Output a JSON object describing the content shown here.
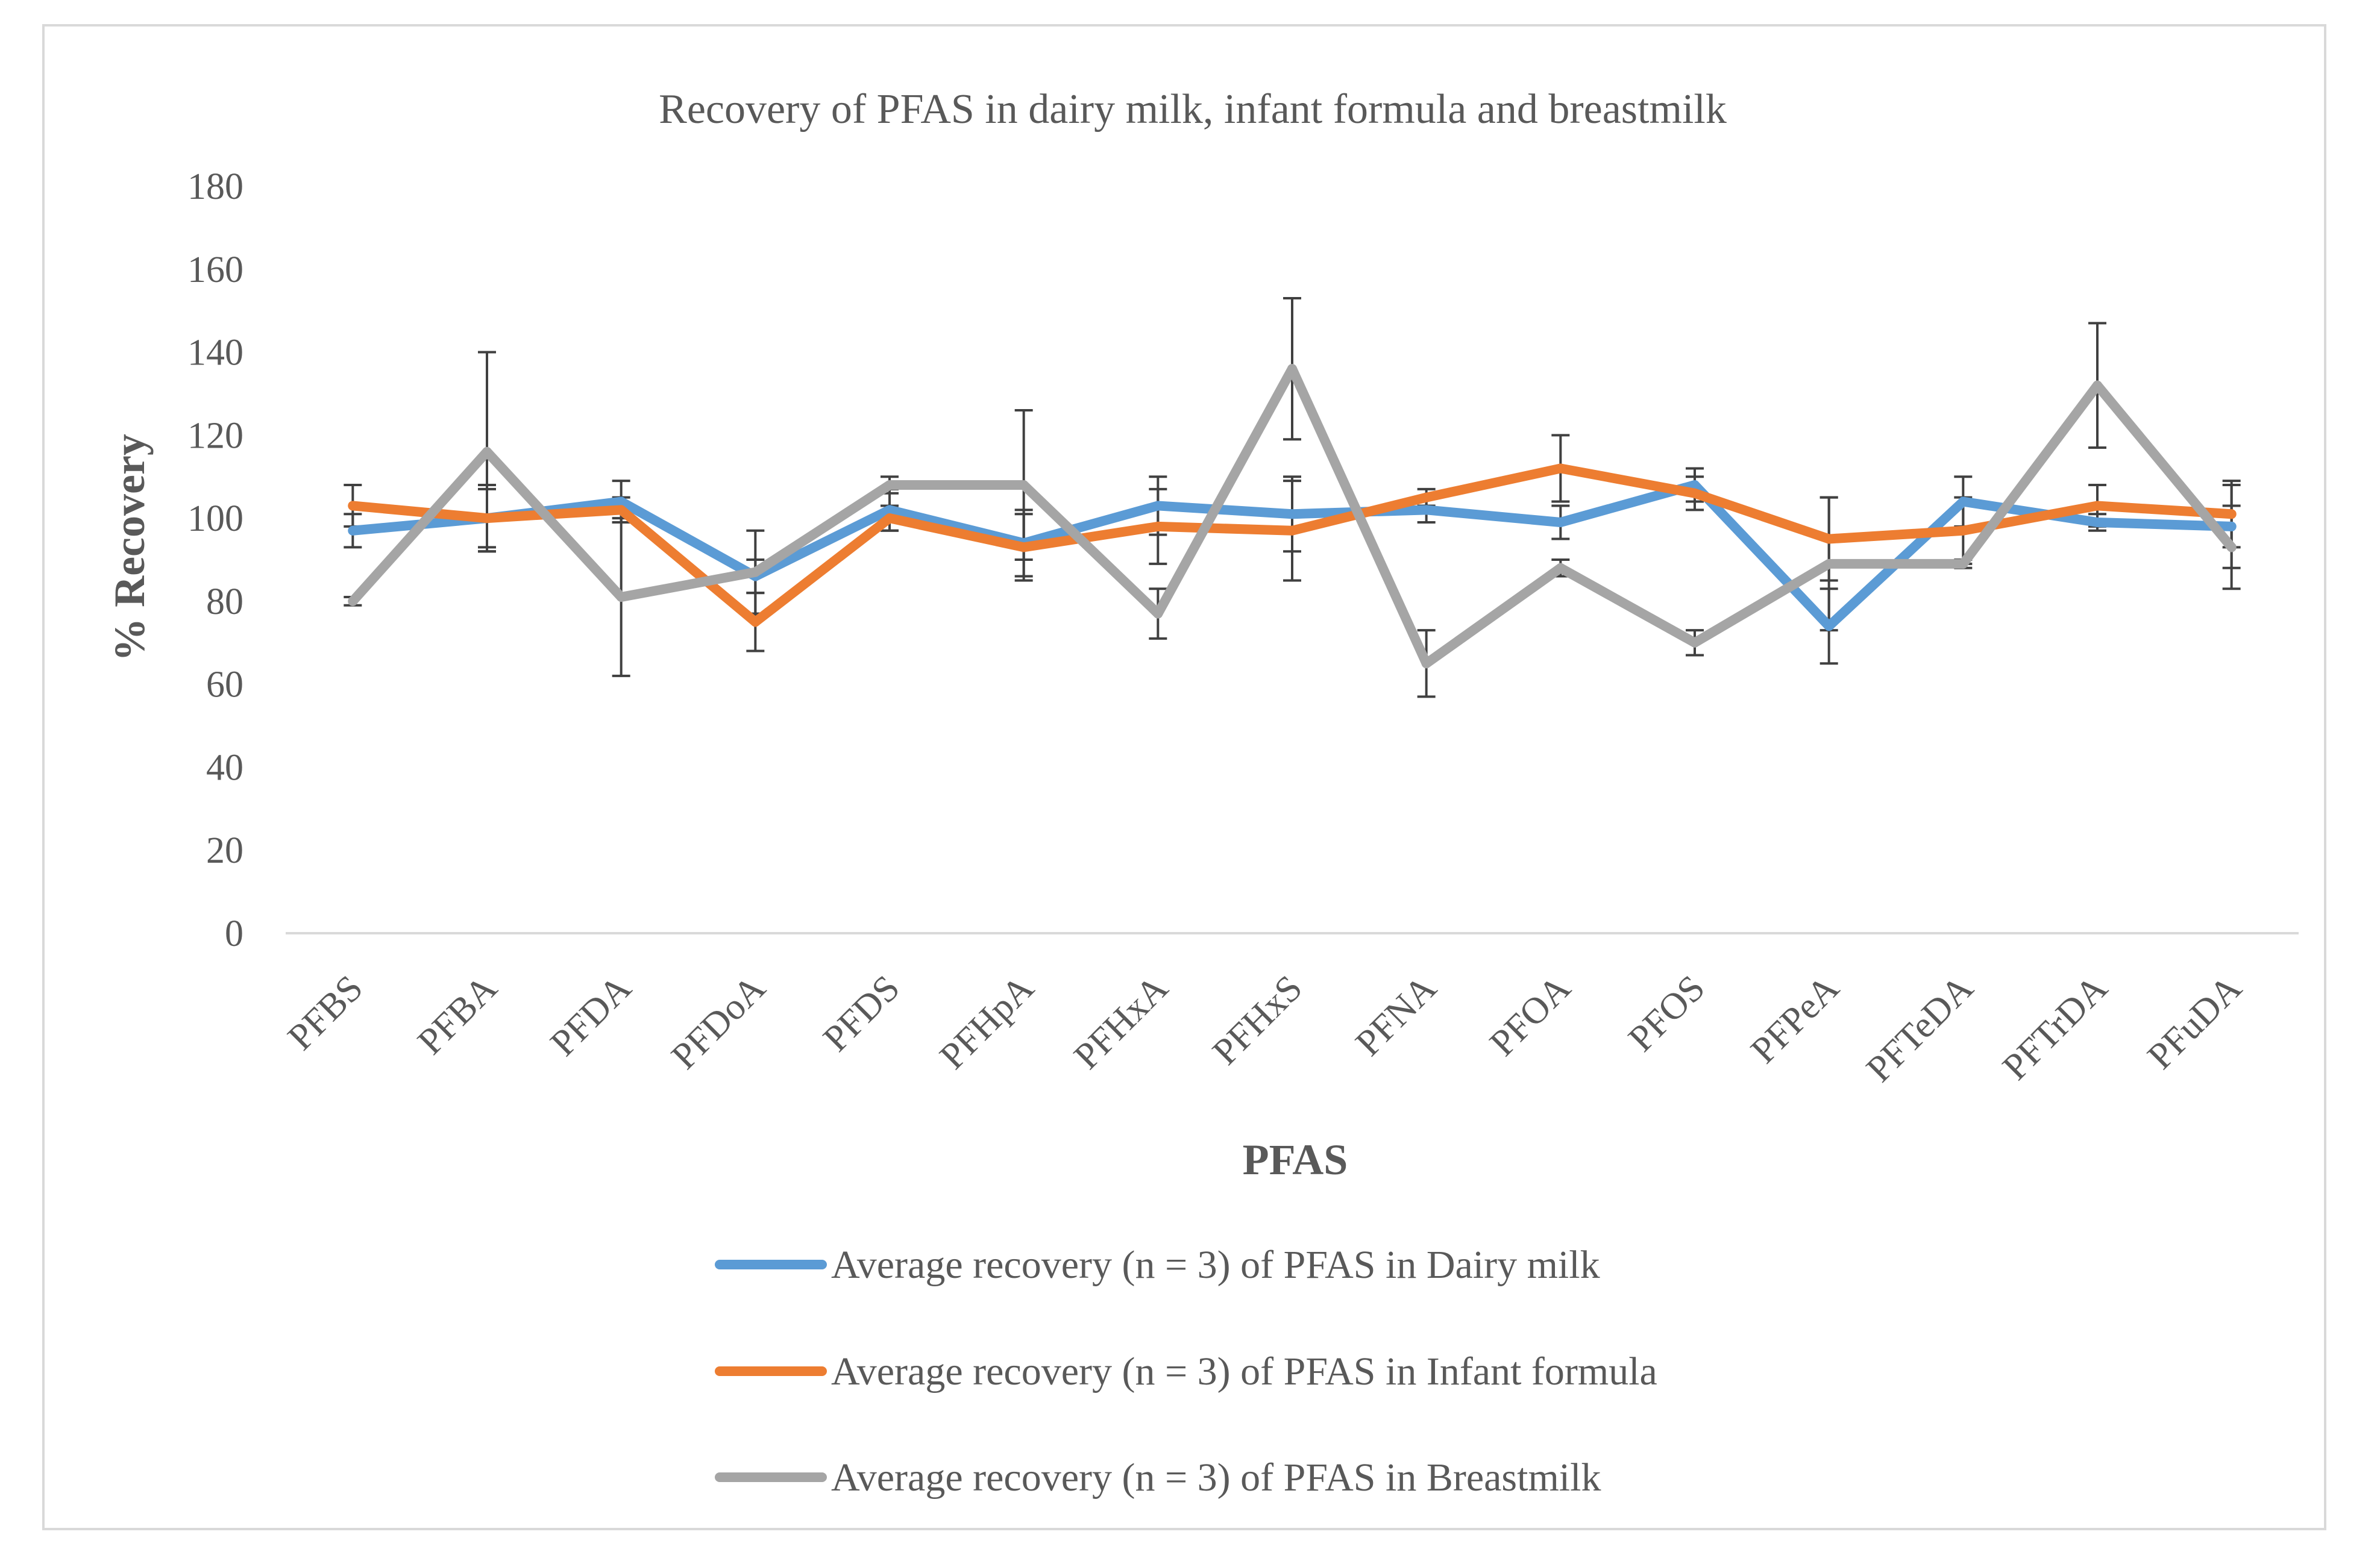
{
  "chart_data": {
    "type": "line",
    "title": "Recovery of PFAS in dairy milk, infant formula and breastmilk",
    "xlabel": "PFAS",
    "ylabel": "% Recovery",
    "ylim": [
      0,
      180
    ],
    "yticks": [
      0,
      20,
      40,
      60,
      80,
      100,
      120,
      140,
      160,
      180
    ],
    "grid": false,
    "legend_position": "bottom",
    "categories": [
      "PFBS",
      "PFBA",
      "PFDA",
      "PFDoA",
      "PFDS",
      "PFHpA",
      "PFHxA",
      "PFHxS",
      "PFNA",
      "PFOA",
      "PFOS",
      "PFPeA",
      "PFTeDA",
      "PFTrDA",
      "PFuDA"
    ],
    "series": [
      {
        "name": "Average recovery (n = 3) of PFAS in Dairy milk",
        "color": "#5b9bd5",
        "values": [
          97,
          100,
          104,
          86,
          102,
          94,
          103,
          101,
          102,
          99,
          108,
          74,
          104,
          99,
          98
        ],
        "error": [
          4,
          8,
          5,
          4,
          5,
          8,
          7,
          9,
          3,
          4,
          4,
          9,
          6,
          2,
          10
        ]
      },
      {
        "name": "Average recovery (n = 3) of PFAS in Infant formula",
        "color": "#ed7d31",
        "values": [
          103,
          100,
          102,
          75,
          100,
          93,
          98,
          97,
          105,
          112,
          106,
          95,
          97,
          103,
          101
        ],
        "error": [
          5,
          7,
          3,
          7,
          3,
          8,
          9,
          12,
          2,
          8,
          4,
          10,
          8,
          5,
          8
        ]
      },
      {
        "name": "Average recovery (n = 3) of PFAS in Breastmilk",
        "color": "#a5a5a5",
        "values": [
          80,
          116,
          81,
          87,
          108,
          108,
          77,
          136,
          65,
          88,
          70,
          89,
          89,
          132,
          93
        ],
        "error": [
          1,
          24,
          19,
          10,
          2,
          18,
          6,
          17,
          8,
          2,
          3,
          16,
          1,
          15,
          10
        ]
      }
    ]
  }
}
